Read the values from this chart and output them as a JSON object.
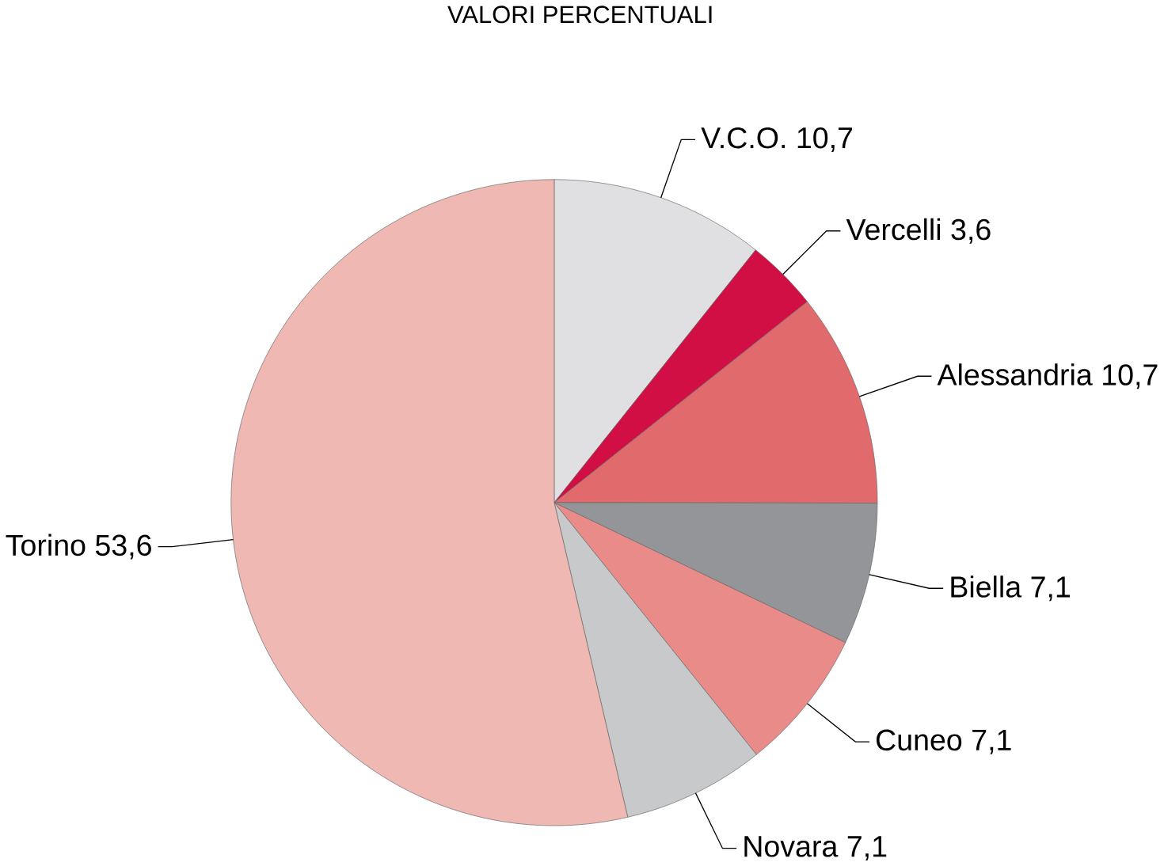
{
  "chart_data": {
    "type": "pie",
    "title": "VALORI PERCENTUALI",
    "categories": [
      "V.C.O.",
      "Vercelli",
      "Alessandria",
      "Biella",
      "Cuneo",
      "Novara",
      "Torino"
    ],
    "values": [
      10.7,
      3.6,
      10.7,
      7.1,
      7.1,
      7.1,
      53.6
    ],
    "value_labels": [
      "10,7",
      "3,6",
      "10,7",
      "7,1",
      "7,1",
      "7,1",
      "53,6"
    ],
    "colors": [
      "#e0e0e2",
      "#d20f45",
      "#e06a6c",
      "#939598",
      "#e98c89",
      "#c8c9cb",
      "#efb8b3"
    ]
  }
}
